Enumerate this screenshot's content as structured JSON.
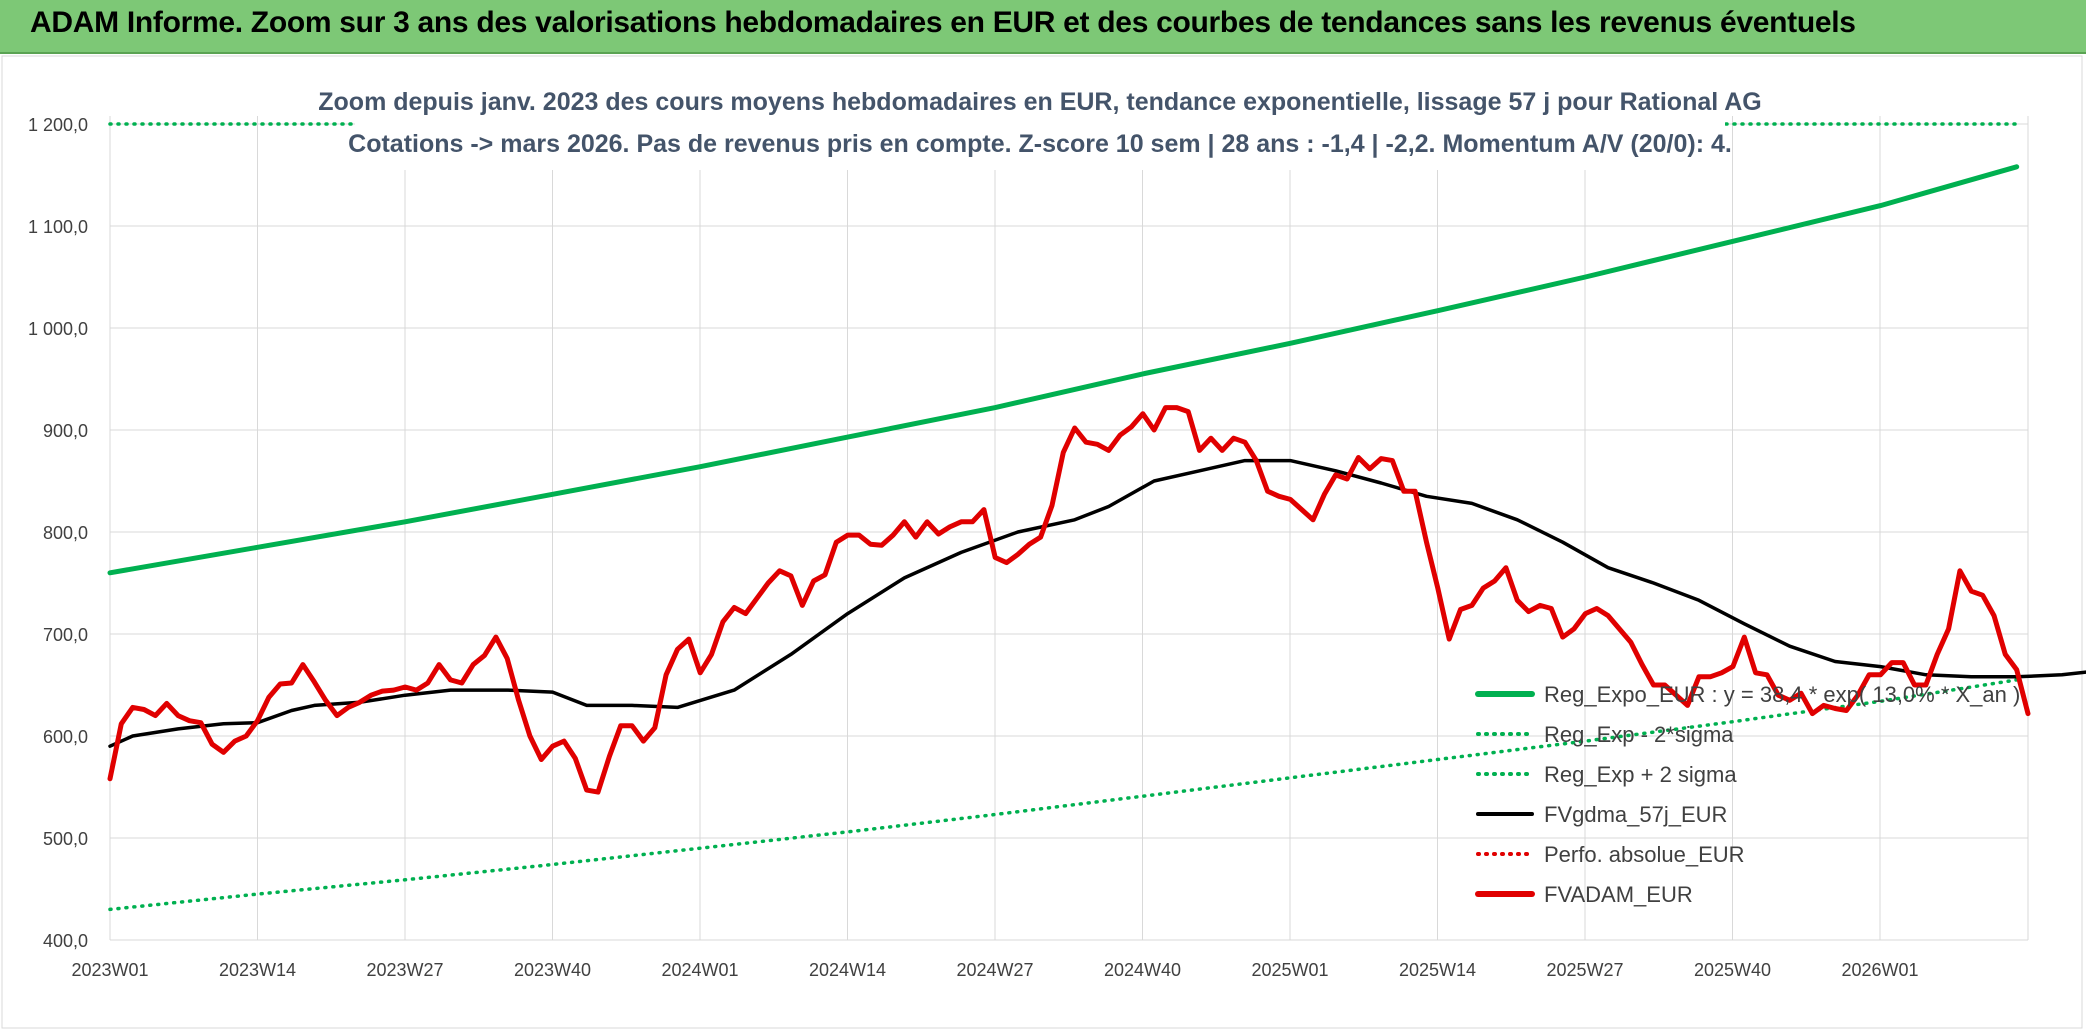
{
  "banner": {
    "title": "ADAM Informe. Zoom sur 3 ans des valorisations hebdomadaires en EUR et des courbes de tendances sans les revenus éventuels"
  },
  "colors": {
    "banner_bg": "#7dc876",
    "trend": "#00b050",
    "sigma": "#00b050",
    "fvgdma": "#000000",
    "perfo": "#e00000",
    "fvadam": "#e00000",
    "subtitle": "#44546a"
  },
  "chart_data": {
    "type": "line",
    "title_lines": [
      "Zoom depuis janv. 2023 des cours moyens hebdomadaires en EUR, tendance exponentielle, lissage 57 j pour Rational AG",
      "Cotations -> mars 2026. Pas de revenus pris en compte. Z-score 10 sem | 28 ans : -1,4 | -2,2. Momentum A/V (20/0): 4."
    ],
    "x_tick_labels": [
      "2023W01",
      "2023W14",
      "2023W27",
      "2023W40",
      "2024W01",
      "2024W14",
      "2024W27",
      "2024W40",
      "2025W01",
      "2025W14",
      "2025W27",
      "2025W40",
      "2026W01"
    ],
    "y_ticks": [
      "400,0",
      "500,0",
      "600,0",
      "700,0",
      "800,0",
      "900,0",
      "1 000,0",
      "1 100,0",
      "1 200,0"
    ],
    "ylim": [
      400,
      1200
    ],
    "legend_position": "bottom-right",
    "series": [
      {
        "name": "Reg_Expo_EUR : y = 38,4 * exp( 13,0% * X_an )",
        "style": "solid-thick",
        "color": "#00b050",
        "points": [
          [
            0,
            760
          ],
          [
            13,
            785
          ],
          [
            26,
            810
          ],
          [
            39,
            837
          ],
          [
            52,
            864
          ],
          [
            65,
            893
          ],
          [
            78,
            922
          ],
          [
            91,
            955
          ],
          [
            104,
            985
          ],
          [
            117,
            1017
          ],
          [
            130,
            1050
          ],
          [
            143,
            1085
          ],
          [
            156,
            1120
          ],
          [
            168,
            1158
          ]
        ]
      },
      {
        "name": "Reg_Exp - 2*sigma",
        "style": "dotted",
        "color": "#00b050",
        "points": [
          [
            0,
            430
          ],
          [
            13,
            445
          ],
          [
            26,
            459
          ],
          [
            39,
            474
          ],
          [
            52,
            490
          ],
          [
            65,
            506
          ],
          [
            78,
            523
          ],
          [
            91,
            541
          ],
          [
            104,
            559
          ],
          [
            117,
            577
          ],
          [
            130,
            595
          ],
          [
            143,
            614
          ],
          [
            156,
            634
          ],
          [
            168,
            655
          ]
        ]
      },
      {
        "name": "Reg_Exp + 2 sigma",
        "style": "dotted",
        "color": "#00b050",
        "points": [
          [
            0,
            1200
          ],
          [
            168,
            1200
          ]
        ]
      },
      {
        "name": "FVgdma_57j_EUR",
        "style": "solid",
        "color": "#000000",
        "points": [
          [
            0,
            590
          ],
          [
            2,
            600
          ],
          [
            6,
            607
          ],
          [
            10,
            612
          ],
          [
            13,
            613
          ],
          [
            16,
            625
          ],
          [
            18,
            630
          ],
          [
            22,
            633
          ],
          [
            26,
            640
          ],
          [
            30,
            645
          ],
          [
            35,
            645
          ],
          [
            39,
            643
          ],
          [
            42,
            630
          ],
          [
            46,
            630
          ],
          [
            50,
            628
          ],
          [
            55,
            645
          ],
          [
            60,
            680
          ],
          [
            65,
            720
          ],
          [
            70,
            755
          ],
          [
            75,
            780
          ],
          [
            80,
            800
          ],
          [
            85,
            812
          ],
          [
            88,
            825
          ],
          [
            92,
            850
          ],
          [
            96,
            860
          ],
          [
            100,
            870
          ],
          [
            104,
            870
          ],
          [
            108,
            860
          ],
          [
            112,
            848
          ],
          [
            116,
            835
          ],
          [
            120,
            828
          ],
          [
            124,
            812
          ],
          [
            128,
            790
          ],
          [
            132,
            765
          ],
          [
            136,
            750
          ],
          [
            140,
            733
          ],
          [
            144,
            710
          ],
          [
            148,
            688
          ],
          [
            152,
            673
          ],
          [
            156,
            668
          ],
          [
            160,
            660
          ],
          [
            164,
            658
          ],
          [
            168,
            658
          ],
          [
            172,
            660
          ],
          [
            176,
            665
          ],
          [
            180,
            668
          ],
          [
            182,
            673
          ],
          [
            186,
            665
          ],
          [
            190,
            650
          ]
        ]
      },
      {
        "name": "Perfo. absolue_EUR",
        "style": "dotted",
        "color": "#e00000",
        "points": []
      },
      {
        "name": "FVADAM_EUR",
        "style": "solid-thick",
        "color": "#e00000",
        "points": [
          [
            0,
            558
          ],
          [
            1,
            612
          ],
          [
            2,
            628
          ],
          [
            3,
            626
          ],
          [
            4,
            620
          ],
          [
            5,
            632
          ],
          [
            6,
            620
          ],
          [
            7,
            615
          ],
          [
            8,
            613
          ],
          [
            9,
            592
          ],
          [
            10,
            584
          ],
          [
            11,
            595
          ],
          [
            12,
            600
          ],
          [
            13,
            615
          ],
          [
            14,
            638
          ],
          [
            15,
            651
          ],
          [
            16,
            652
          ],
          [
            17,
            670
          ],
          [
            18,
            653
          ],
          [
            19,
            635
          ],
          [
            20,
            620
          ],
          [
            21,
            628
          ],
          [
            22,
            633
          ],
          [
            23,
            640
          ],
          [
            24,
            644
          ],
          [
            25,
            645
          ],
          [
            26,
            648
          ],
          [
            27,
            645
          ],
          [
            28,
            652
          ],
          [
            29,
            670
          ],
          [
            30,
            655
          ],
          [
            31,
            652
          ],
          [
            32,
            670
          ],
          [
            33,
            679
          ],
          [
            34,
            697
          ],
          [
            35,
            676
          ],
          [
            36,
            635
          ],
          [
            37,
            600
          ],
          [
            38,
            577
          ],
          [
            39,
            590
          ],
          [
            40,
            595
          ],
          [
            41,
            578
          ],
          [
            42,
            547
          ],
          [
            43,
            545
          ],
          [
            44,
            580
          ],
          [
            45,
            610
          ],
          [
            46,
            610
          ],
          [
            47,
            595
          ],
          [
            48,
            608
          ],
          [
            49,
            660
          ],
          [
            50,
            685
          ],
          [
            51,
            695
          ],
          [
            52,
            662
          ],
          [
            53,
            680
          ],
          [
            54,
            712
          ],
          [
            55,
            726
          ],
          [
            56,
            720
          ],
          [
            57,
            735
          ],
          [
            58,
            750
          ],
          [
            59,
            762
          ],
          [
            60,
            757
          ],
          [
            61,
            728
          ],
          [
            62,
            752
          ],
          [
            63,
            758
          ],
          [
            64,
            790
          ],
          [
            65,
            797
          ],
          [
            66,
            797
          ],
          [
            67,
            788
          ],
          [
            68,
            787
          ],
          [
            69,
            797
          ],
          [
            70,
            810
          ],
          [
            71,
            795
          ],
          [
            72,
            810
          ],
          [
            73,
            798
          ],
          [
            74,
            805
          ],
          [
            75,
            810
          ],
          [
            76,
            810
          ],
          [
            77,
            822
          ],
          [
            78,
            775
          ],
          [
            79,
            770
          ],
          [
            80,
            778
          ],
          [
            81,
            788
          ],
          [
            82,
            795
          ],
          [
            83,
            826
          ],
          [
            84,
            878
          ],
          [
            85,
            902
          ],
          [
            86,
            888
          ],
          [
            87,
            886
          ],
          [
            88,
            880
          ],
          [
            89,
            895
          ],
          [
            90,
            903
          ],
          [
            91,
            916
          ],
          [
            92,
            900
          ],
          [
            93,
            922
          ],
          [
            94,
            922
          ],
          [
            95,
            918
          ],
          [
            96,
            880
          ],
          [
            97,
            892
          ],
          [
            98,
            880
          ],
          [
            99,
            892
          ],
          [
            100,
            888
          ],
          [
            101,
            870
          ],
          [
            102,
            840
          ],
          [
            103,
            835
          ],
          [
            104,
            832
          ],
          [
            105,
            822
          ],
          [
            106,
            812
          ],
          [
            107,
            837
          ],
          [
            108,
            856
          ],
          [
            109,
            852
          ],
          [
            110,
            873
          ],
          [
            111,
            862
          ],
          [
            112,
            872
          ],
          [
            113,
            870
          ],
          [
            114,
            840
          ],
          [
            115,
            840
          ],
          [
            116,
            790
          ],
          [
            117,
            745
          ],
          [
            118,
            695
          ],
          [
            119,
            724
          ],
          [
            120,
            728
          ],
          [
            121,
            745
          ],
          [
            122,
            752
          ],
          [
            123,
            765
          ],
          [
            124,
            733
          ],
          [
            125,
            722
          ],
          [
            126,
            728
          ],
          [
            127,
            725
          ],
          [
            128,
            697
          ],
          [
            129,
            705
          ],
          [
            130,
            720
          ],
          [
            131,
            725
          ],
          [
            132,
            718
          ],
          [
            133,
            705
          ],
          [
            134,
            692
          ],
          [
            135,
            670
          ],
          [
            136,
            650
          ],
          [
            137,
            650
          ],
          [
            138,
            640
          ],
          [
            139,
            630
          ],
          [
            140,
            658
          ],
          [
            141,
            658
          ],
          [
            142,
            662
          ],
          [
            143,
            668
          ],
          [
            144,
            697
          ],
          [
            145,
            662
          ],
          [
            146,
            660
          ],
          [
            147,
            640
          ],
          [
            148,
            635
          ],
          [
            149,
            642
          ],
          [
            150,
            622
          ],
          [
            151,
            630
          ],
          [
            152,
            627
          ],
          [
            153,
            625
          ],
          [
            154,
            640
          ],
          [
            155,
            660
          ],
          [
            156,
            660
          ],
          [
            157,
            672
          ],
          [
            158,
            672
          ],
          [
            159,
            650
          ],
          [
            160,
            650
          ],
          [
            161,
            680
          ],
          [
            162,
            705
          ],
          [
            163,
            762
          ],
          [
            164,
            742
          ],
          [
            165,
            738
          ],
          [
            166,
            718
          ],
          [
            167,
            680
          ],
          [
            168,
            665
          ],
          [
            169,
            622
          ]
        ]
      }
    ]
  }
}
